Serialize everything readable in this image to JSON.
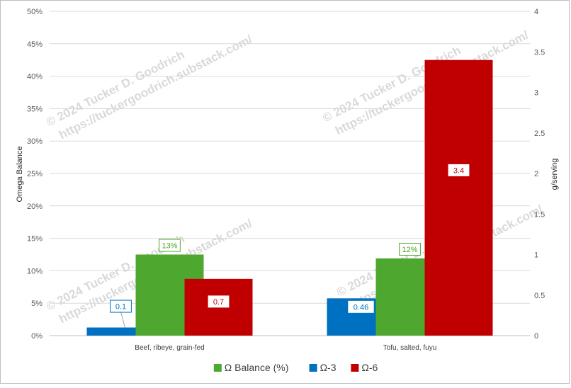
{
  "chart_data": {
    "type": "bar",
    "categories": [
      "Beef, ribeye, grain-fed",
      "Tofu, salted, fuyu"
    ],
    "series": [
      {
        "name": "Ω Balance (%)",
        "values": [
          12.5,
          11.9
        ],
        "data_labels": [
          "13%",
          "12%"
        ],
        "axis": "left",
        "color": "#4ea72e"
      },
      {
        "name": "Ω-3",
        "values": [
          0.1,
          0.46
        ],
        "data_labels": [
          "0.1",
          "0.46"
        ],
        "axis": "right",
        "color": "#0070c0"
      },
      {
        "name": "Ω-6",
        "values": [
          0.7,
          3.4
        ],
        "data_labels": [
          "0.7",
          "3.4"
        ],
        "axis": "right",
        "color": "#c00000"
      }
    ],
    "y_left": {
      "label": "Omega Balance",
      "min": 0,
      "max": 50,
      "step": 5,
      "format": "percent",
      "ticks": [
        "0%",
        "5%",
        "10%",
        "15%",
        "20%",
        "25%",
        "30%",
        "35%",
        "40%",
        "45%",
        "50%"
      ]
    },
    "y_right": {
      "label": "g/serving",
      "min": 0,
      "max": 4,
      "step": 0.5,
      "ticks": [
        "0",
        "0.5",
        "1",
        "1.5",
        "2",
        "2.5",
        "3",
        "3.5",
        "4"
      ]
    },
    "grid": true,
    "legend": "bottom",
    "watermark": [
      "© 2024 Tucker D. Goodrich",
      "https://tuckergoodrich.substack.com/"
    ]
  }
}
